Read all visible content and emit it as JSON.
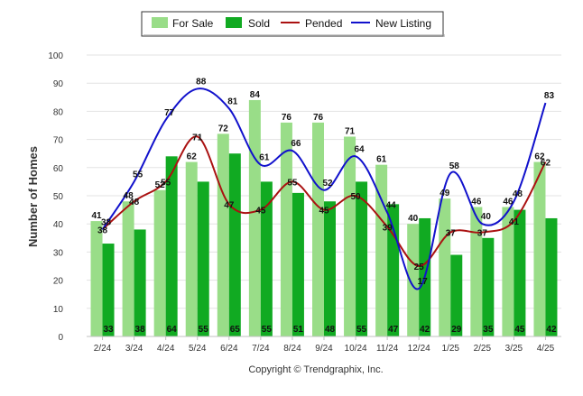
{
  "chart_data": {
    "type": "bar",
    "categories": [
      "2/24",
      "3/24",
      "4/24",
      "5/24",
      "6/24",
      "7/24",
      "8/24",
      "9/24",
      "10/24",
      "11/24",
      "12/24",
      "1/25",
      "2/25",
      "3/25",
      "4/25"
    ],
    "series": [
      {
        "name": "For Sale",
        "kind": "bar",
        "color": "#99dd88",
        "values": [
          41,
          48,
          52,
          62,
          72,
          84,
          76,
          76,
          71,
          61,
          40,
          49,
          46,
          46,
          62
        ]
      },
      {
        "name": "Sold",
        "kind": "bar",
        "color": "#11aa22",
        "values": [
          33,
          38,
          64,
          55,
          65,
          55,
          51,
          48,
          55,
          47,
          42,
          29,
          35,
          45,
          42
        ]
      },
      {
        "name": "Pended",
        "kind": "line",
        "color": "#aa1111",
        "values": [
          38,
          48,
          55,
          71,
          47,
          45,
          55,
          45,
          50,
          39,
          25,
          37,
          37,
          41,
          62
        ]
      },
      {
        "name": "New Listing",
        "kind": "line",
        "color": "#1111cc",
        "values": [
          38,
          55,
          77,
          88,
          81,
          61,
          66,
          52,
          64,
          44,
          17,
          58,
          40,
          48,
          83
        ]
      }
    ],
    "ylabel": "Number of Homes",
    "xlabel": "",
    "ylim": [
      0,
      100
    ],
    "yticks": [
      0,
      10,
      20,
      30,
      40,
      50,
      60,
      70,
      80,
      90,
      100
    ],
    "grid": true,
    "legend_position": "top-center",
    "footer": "Copyright © Trendgraphix, Inc."
  }
}
